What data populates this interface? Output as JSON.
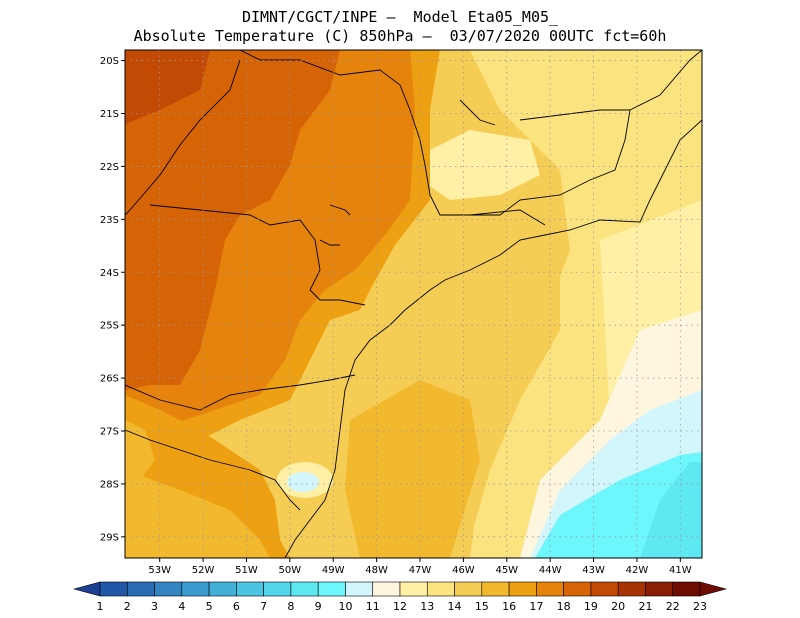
{
  "title_line1": "DIMNT/CGCT/INPE –  Model Eta05_M05_",
  "title_line2": "Absolute Temperature (C) 850hPa –  03/07/2020 00UTC fct=60h",
  "lat_labels": [
    "20S",
    "21S",
    "22S",
    "23S",
    "24S",
    "25S",
    "26S",
    "27S",
    "28S",
    "29S"
  ],
  "lon_labels": [
    "53W",
    "52W",
    "51W",
    "50W",
    "49W",
    "48W",
    "47W",
    "46W",
    "45W",
    "44W",
    "43W",
    "42W",
    "41W"
  ],
  "colorbar": {
    "labels": [
      "1",
      "2",
      "3",
      "4",
      "5",
      "6",
      "7",
      "8",
      "9",
      "10",
      "11",
      "12",
      "13",
      "14",
      "15",
      "16",
      "17",
      "18",
      "19",
      "20",
      "21",
      "22",
      "23"
    ],
    "colors": [
      "#1c3f94",
      "#2256a6",
      "#2a6db5",
      "#3384c2",
      "#3b9ccf",
      "#43b0d9",
      "#4bc4e2",
      "#54d6ea",
      "#5ee8f2",
      "#6df6fb",
      "#d3f5fc",
      "#fff6e0",
      "#fff0a6",
      "#fbe37f",
      "#f5cd55",
      "#f2b92e",
      "#eda012",
      "#e6830c",
      "#d76307",
      "#c24a05",
      "#a73304",
      "#8a1d03",
      "#6e0c02"
    ]
  },
  "map": {
    "lon_range": [
      -53.8,
      -40.5
    ],
    "lat_range": [
      -29.4,
      -19.8
    ]
  }
}
